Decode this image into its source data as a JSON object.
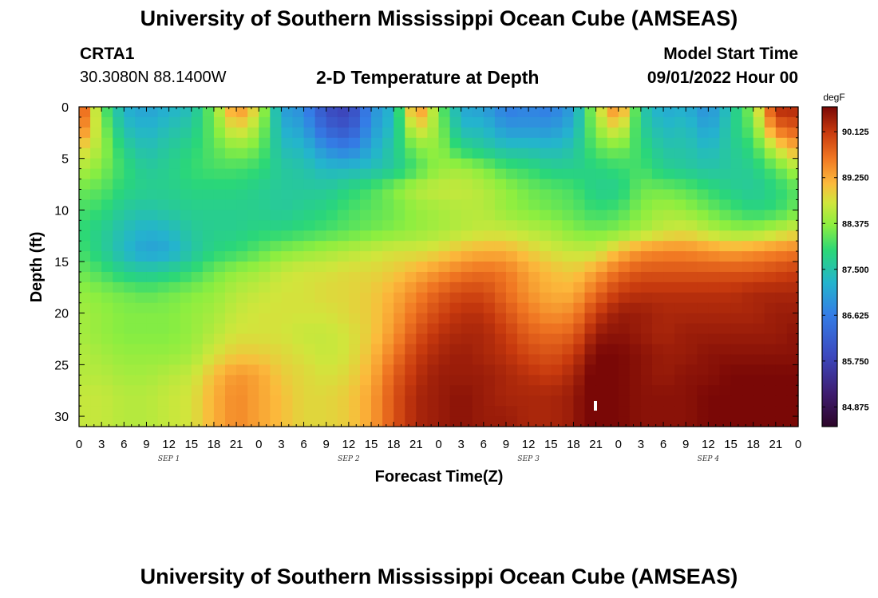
{
  "header": {
    "title": "University of Southern Mississippi Ocean Cube (AMSEAS)",
    "station": "CRTA1",
    "coords": "30.3080N  88.1400W",
    "plot_title": "2-D Temperature at Depth",
    "model_label": "Model Start Time",
    "model_time": "09/01/2022 Hour 00"
  },
  "footer": {
    "title": "University of Southern Mississippi Ocean Cube (AMSEAS)"
  },
  "chart_data": {
    "type": "heatmap",
    "title": "2-D Temperature at Depth",
    "xlabel": "Forecast Time(Z)",
    "ylabel": "Depth (ft)",
    "x_range": [
      0,
      96
    ],
    "x_step_hours": 1.5,
    "y_range": [
      0,
      31
    ],
    "y_reversed": true,
    "x_tick_labels": [
      "0",
      "3",
      "6",
      "9",
      "12",
      "15",
      "18",
      "21",
      "0",
      "3",
      "6",
      "9",
      "12",
      "15",
      "18",
      "21",
      "0",
      "3",
      "6",
      "9",
      "12",
      "15",
      "18",
      "21",
      "0",
      "3",
      "6",
      "9",
      "12",
      "15",
      "18",
      "21",
      "0"
    ],
    "y_ticks": [
      0,
      5,
      10,
      15,
      20,
      25,
      30
    ],
    "day_labels": [
      {
        "label": "SEP 1",
        "hour": 12
      },
      {
        "label": "SEP 2",
        "hour": 36
      },
      {
        "label": "SEP 3",
        "hour": 60
      },
      {
        "label": "SEP 4",
        "hour": 84
      }
    ],
    "colorbar": {
      "unit": "degF",
      "min": 84.5,
      "max": 90.6,
      "tick_values": [
        84.875,
        85.75,
        86.625,
        87.5,
        88.375,
        89.25,
        90.125
      ],
      "tick_labels": [
        "84.875",
        "85.750",
        "86.625",
        "87.500",
        "88.375",
        "89.250",
        "90.125"
      ]
    },
    "depth_levels": [
      0,
      2,
      4,
      6,
      8,
      10,
      12,
      14,
      16,
      18,
      20,
      22,
      24,
      26,
      28,
      30,
      31
    ],
    "time_hours": [
      0,
      3,
      6,
      9,
      12,
      15,
      18,
      21,
      24,
      27,
      30,
      33,
      36,
      39,
      42,
      45,
      48,
      51,
      54,
      57,
      60,
      63,
      66,
      69,
      72,
      75,
      78,
      81,
      84,
      87,
      90,
      93,
      96
    ],
    "values": [
      [
        90.2,
        88.2,
        87.2,
        87.0,
        87.2,
        87.4,
        88.3,
        89.6,
        88.8,
        87.0,
        86.8,
        85.9,
        85.7,
        86.8,
        87.3,
        89.7,
        88.3,
        87.1,
        87.0,
        86.6,
        86.7,
        86.6,
        87.0,
        88.6,
        89.7,
        87.6,
        87.1,
        87.2,
        86.8,
        87.5,
        88.4,
        90.3,
        90.3
      ],
      [
        89.8,
        88.4,
        87.4,
        87.2,
        87.4,
        87.6,
        88.2,
        89.0,
        88.5,
        87.2,
        87.0,
        86.2,
        86.0,
        86.9,
        87.4,
        89.0,
        88.4,
        87.3,
        87.3,
        86.9,
        86.9,
        86.9,
        87.2,
        88.4,
        89.0,
        87.7,
        87.3,
        87.4,
        87.0,
        87.6,
        88.2,
        89.7,
        89.9
      ],
      [
        89.0,
        88.5,
        87.7,
        87.4,
        87.6,
        87.8,
        88.1,
        88.4,
        88.2,
        87.4,
        87.3,
        86.8,
        86.6,
        87.1,
        87.6,
        88.3,
        88.4,
        87.8,
        87.6,
        87.4,
        87.4,
        87.3,
        87.5,
        88.1,
        88.3,
        87.9,
        87.5,
        87.5,
        87.3,
        87.6,
        87.9,
        88.8,
        89.3
      ],
      [
        88.6,
        88.3,
        87.9,
        87.6,
        87.7,
        87.9,
        88.0,
        88.0,
        87.9,
        87.6,
        87.5,
        87.3,
        87.3,
        87.4,
        87.6,
        88.0,
        88.4,
        88.5,
        88.3,
        88.0,
        87.9,
        87.7,
        87.7,
        87.8,
        87.9,
        88.0,
        87.7,
        87.6,
        87.5,
        87.6,
        87.7,
        88.1,
        88.6
      ],
      [
        88.2,
        88.1,
        87.8,
        87.7,
        87.7,
        87.8,
        87.8,
        87.8,
        87.7,
        87.6,
        87.6,
        87.6,
        87.8,
        88.0,
        88.3,
        88.6,
        88.7,
        88.7,
        88.6,
        88.4,
        88.2,
        88.1,
        88.0,
        87.7,
        87.7,
        88.2,
        88.2,
        88.1,
        87.9,
        87.7,
        87.6,
        87.8,
        88.1
      ],
      [
        88.0,
        87.9,
        87.6,
        87.5,
        87.6,
        87.7,
        87.7,
        87.7,
        87.7,
        87.6,
        87.7,
        87.8,
        88.0,
        88.1,
        88.2,
        88.4,
        88.5,
        88.6,
        88.6,
        88.4,
        88.3,
        88.2,
        88.1,
        87.9,
        88.0,
        88.3,
        88.5,
        88.4,
        88.2,
        88.0,
        87.8,
        87.9,
        88.2
      ],
      [
        87.9,
        87.7,
        87.4,
        87.2,
        87.3,
        87.6,
        87.7,
        87.7,
        87.8,
        87.8,
        87.9,
        88.0,
        88.1,
        88.2,
        88.3,
        88.4,
        88.5,
        88.6,
        88.7,
        88.7,
        88.6,
        88.5,
        88.3,
        88.2,
        88.3,
        88.5,
        88.7,
        88.8,
        88.6,
        88.4,
        88.4,
        88.6,
        88.8
      ],
      [
        88.0,
        87.7,
        87.3,
        87.0,
        87.1,
        87.5,
        87.8,
        87.9,
        88.1,
        88.3,
        88.4,
        88.5,
        88.6,
        88.7,
        88.8,
        88.8,
        88.9,
        89.1,
        89.2,
        89.2,
        89.0,
        88.8,
        88.7,
        88.7,
        89.1,
        89.4,
        89.5,
        89.5,
        89.4,
        89.3,
        89.4,
        89.5,
        89.6
      ],
      [
        88.2,
        88.0,
        87.7,
        87.6,
        87.7,
        87.9,
        88.2,
        88.4,
        88.5,
        88.7,
        88.8,
        88.8,
        88.9,
        88.9,
        89.0,
        89.2,
        89.4,
        89.6,
        89.7,
        89.6,
        89.3,
        89.1,
        89.0,
        89.3,
        89.7,
        89.9,
        89.9,
        89.9,
        89.9,
        89.9,
        89.9,
        90.0,
        90.1
      ],
      [
        88.4,
        88.3,
        88.2,
        88.1,
        88.2,
        88.3,
        88.4,
        88.6,
        88.7,
        88.8,
        88.8,
        88.9,
        88.9,
        89.0,
        89.2,
        89.5,
        89.8,
        90.0,
        90.0,
        89.7,
        89.4,
        89.2,
        89.2,
        89.7,
        90.1,
        90.2,
        90.2,
        90.2,
        90.2,
        90.2,
        90.3,
        90.3,
        90.3
      ],
      [
        88.5,
        88.4,
        88.3,
        88.3,
        88.3,
        88.4,
        88.5,
        88.7,
        88.8,
        88.8,
        88.8,
        88.8,
        88.9,
        89.0,
        89.3,
        89.7,
        90.0,
        90.2,
        90.2,
        89.9,
        89.6,
        89.4,
        89.5,
        90.1,
        90.4,
        90.4,
        90.3,
        90.3,
        90.3,
        90.3,
        90.3,
        90.4,
        90.4
      ],
      [
        88.5,
        88.4,
        88.3,
        88.3,
        88.3,
        88.4,
        88.6,
        88.8,
        88.8,
        88.8,
        88.7,
        88.7,
        88.8,
        89.0,
        89.4,
        89.9,
        90.2,
        90.3,
        90.3,
        90.1,
        89.8,
        89.7,
        89.8,
        90.4,
        90.5,
        90.4,
        90.3,
        90.4,
        90.4,
        90.4,
        90.4,
        90.4,
        90.5
      ],
      [
        88.6,
        88.5,
        88.4,
        88.4,
        88.4,
        88.5,
        88.8,
        89.0,
        89.0,
        88.9,
        88.8,
        88.7,
        88.8,
        89.1,
        89.6,
        90.1,
        90.3,
        90.4,
        90.3,
        90.2,
        90.0,
        89.9,
        90.1,
        90.6,
        90.6,
        90.5,
        90.4,
        90.4,
        90.5,
        90.5,
        90.5,
        90.5,
        90.5
      ],
      [
        88.6,
        88.6,
        88.5,
        88.5,
        88.6,
        88.7,
        89.1,
        89.4,
        89.3,
        89.0,
        88.9,
        88.8,
        88.9,
        89.2,
        89.8,
        90.2,
        90.4,
        90.4,
        90.4,
        90.3,
        90.2,
        90.1,
        90.3,
        90.7,
        90.6,
        90.5,
        90.4,
        90.5,
        90.5,
        90.6,
        90.6,
        90.6,
        90.6
      ],
      [
        88.7,
        88.7,
        88.6,
        88.6,
        88.7,
        88.8,
        89.2,
        89.5,
        89.3,
        89.1,
        88.9,
        88.9,
        89.0,
        89.3,
        89.9,
        90.3,
        90.4,
        90.5,
        90.4,
        90.3,
        90.3,
        90.3,
        90.4,
        90.8,
        90.6,
        90.5,
        90.5,
        90.5,
        90.6,
        90.6,
        90.6,
        90.6,
        90.6
      ],
      [
        88.7,
        88.7,
        88.6,
        88.6,
        88.7,
        88.8,
        89.2,
        89.5,
        89.3,
        89.1,
        88.9,
        88.9,
        89.0,
        89.3,
        89.9,
        90.3,
        90.4,
        90.5,
        90.4,
        90.4,
        90.3,
        90.3,
        90.4,
        90.8,
        90.6,
        90.5,
        90.5,
        90.5,
        90.6,
        90.6,
        90.6,
        90.6,
        90.6
      ],
      [
        88.7,
        88.7,
        88.6,
        88.6,
        88.7,
        88.8,
        89.2,
        89.5,
        89.3,
        89.1,
        88.9,
        88.9,
        89.0,
        89.3,
        89.9,
        90.3,
        90.4,
        90.5,
        90.4,
        90.4,
        90.3,
        90.3,
        90.4,
        90.8,
        90.6,
        90.5,
        90.5,
        90.5,
        90.6,
        90.6,
        90.6,
        90.6,
        90.6
      ]
    ]
  }
}
